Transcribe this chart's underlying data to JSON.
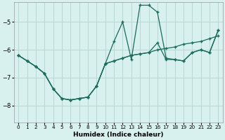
{
  "xlabel": "Humidex (Indice chaleur)",
  "background_color": "#d8f0ee",
  "grid_color": "#b8d8d4",
  "line_color": "#1a6b5a",
  "xlim": [
    -0.5,
    23.5
  ],
  "ylim": [
    -8.6,
    -4.3
  ],
  "yticks": [
    -8,
    -7,
    -6,
    -5
  ],
  "xticks": [
    0,
    1,
    2,
    3,
    4,
    5,
    6,
    7,
    8,
    9,
    10,
    11,
    12,
    13,
    14,
    15,
    16,
    17,
    18,
    19,
    20,
    21,
    22,
    23
  ],
  "series": [
    {
      "x": [
        0,
        1,
        2,
        3,
        4,
        5,
        6,
        7,
        8,
        9,
        10,
        11,
        12,
        13,
        14,
        15,
        16,
        17,
        18,
        19,
        20,
        21,
        22,
        23
      ],
      "y": [
        -6.2,
        -6.4,
        -6.6,
        -6.85,
        -7.4,
        -7.75,
        -7.8,
        -7.75,
        -7.7,
        -7.3,
        -6.5,
        -5.7,
        -5.0,
        -6.35,
        -4.4,
        -4.4,
        -4.65,
        -6.3,
        -6.35,
        -6.4,
        -6.1,
        -6.0,
        -6.1,
        -5.3
      ]
    },
    {
      "x": [
        0,
        1,
        2,
        3,
        4,
        5,
        6,
        7,
        8,
        9,
        10,
        11,
        12,
        13,
        14,
        15,
        16,
        17,
        18,
        19,
        20,
        21,
        22,
        23
      ],
      "y": [
        -6.2,
        -6.4,
        -6.6,
        -6.85,
        -7.4,
        -7.75,
        -7.8,
        -7.75,
        -7.7,
        -7.3,
        -6.5,
        -6.4,
        -6.3,
        -6.2,
        -6.15,
        -6.1,
        -6.0,
        -5.95,
        -5.9,
        -5.8,
        -5.75,
        -5.7,
        -5.6,
        -5.5
      ]
    },
    {
      "x": [
        0,
        1,
        2,
        3,
        4,
        5,
        6,
        7,
        8,
        9,
        10,
        11,
        12,
        13,
        14,
        15,
        16,
        17,
        18,
        19,
        20,
        21,
        22,
        23
      ],
      "y": [
        -6.2,
        -6.4,
        -6.6,
        -6.85,
        -7.4,
        -7.75,
        -7.8,
        -7.75,
        -7.7,
        -7.3,
        -6.5,
        -6.4,
        -6.3,
        -6.2,
        -6.15,
        -6.1,
        -5.75,
        -6.35,
        -6.35,
        -6.4,
        -6.1,
        -6.0,
        -6.1,
        -5.3
      ]
    }
  ]
}
